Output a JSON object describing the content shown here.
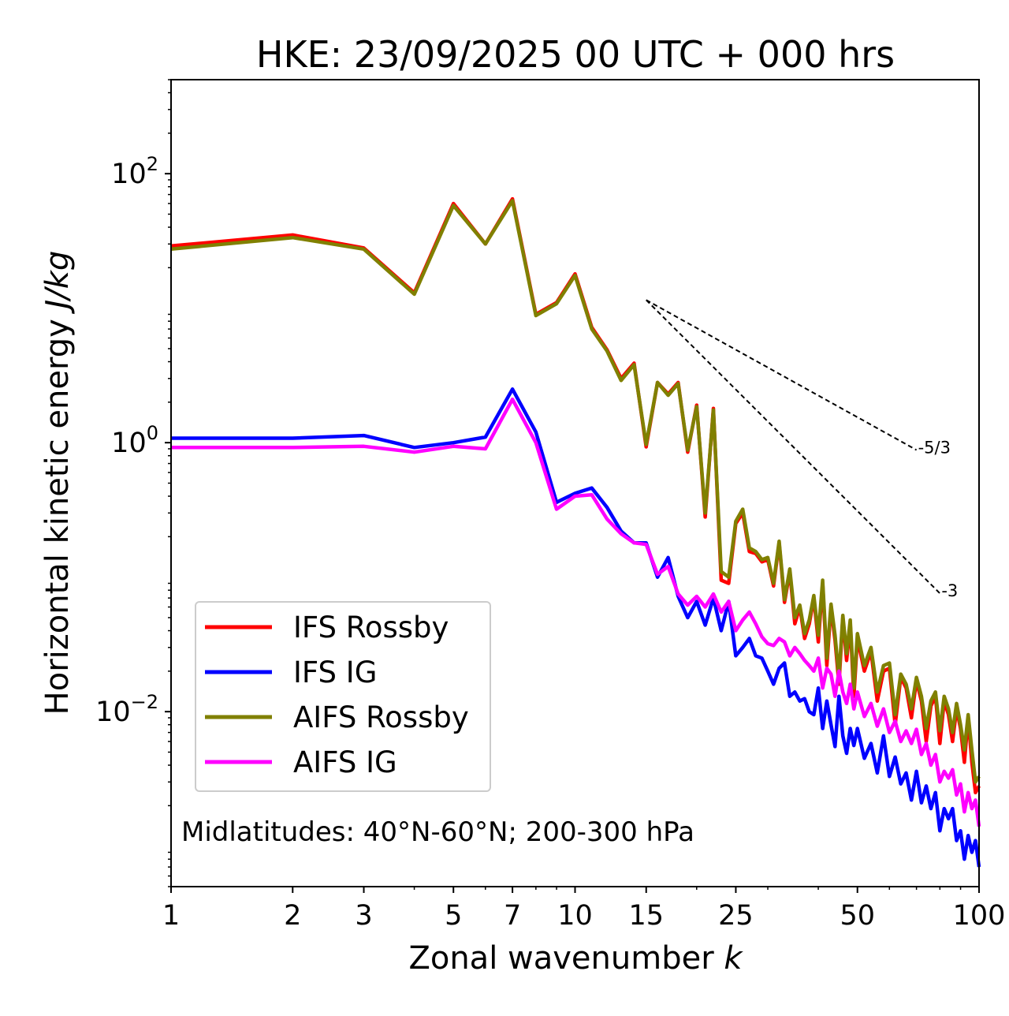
{
  "chart_data": {
    "type": "line",
    "title": "HKE: 23/09/2025 00 UTC + 000 hrs",
    "xlabel": "Zonal wavenumber",
    "xlabel_var": "k",
    "ylabel": "Horizontal kinetic energy",
    "ylabel_units": "J/kg",
    "xscale": "log",
    "yscale": "log",
    "xlim": [
      1,
      100
    ],
    "ylim": [
      0.0005,
      500
    ],
    "xticks": [
      1,
      2,
      3,
      5,
      7,
      10,
      15,
      25,
      50,
      100
    ],
    "xtick_labels": [
      "1",
      "2",
      "3",
      "5",
      "7",
      "10",
      "15",
      "25",
      "50",
      "100"
    ],
    "yticks": [
      0.01,
      1,
      100
    ],
    "ytick_labels": [
      {
        "base": "10",
        "exp": "−2"
      },
      {
        "base": "10",
        "exp": "0"
      },
      {
        "base": "10",
        "exp": "2"
      }
    ],
    "annotation": "Midlatitudes: 40°N-60°N; 200-300 hPa",
    "legend_position": "lower-left",
    "reference_lines": [
      {
        "label": "-5/3",
        "slope": -1.6667,
        "x0": 15,
        "y0": 11.5,
        "x1": 70,
        "color": "#000000"
      },
      {
        "label": "-3",
        "slope": -3,
        "x0": 15,
        "y0": 11.5,
        "x1": 80,
        "color": "#000000"
      }
    ],
    "series": [
      {
        "name": "IFS Rossby",
        "color": "#ff0000",
        "x": [
          1,
          2,
          3,
          4,
          5,
          6,
          7,
          8,
          9,
          10,
          11,
          12,
          13,
          14,
          15,
          16,
          17,
          18,
          19,
          20,
          21,
          22,
          23,
          24,
          25,
          26,
          27,
          28,
          29,
          30,
          31,
          32,
          33,
          34,
          35,
          36,
          37,
          38,
          39,
          40,
          41,
          42,
          43,
          44,
          45,
          46,
          47,
          48,
          49,
          50,
          52,
          54,
          56,
          58,
          60,
          62,
          64,
          66,
          68,
          70,
          72,
          74,
          76,
          78,
          80,
          82,
          84,
          86,
          88,
          90,
          92,
          94,
          96,
          98,
          100
        ],
        "values": [
          29,
          35,
          28,
          13,
          60,
          30,
          65,
          9,
          11,
          18,
          7.2,
          4.9,
          3.0,
          3.9,
          0.93,
          2.8,
          2.3,
          2.8,
          0.85,
          1.9,
          0.28,
          1.8,
          0.095,
          0.09,
          0.25,
          0.3,
          0.155,
          0.15,
          0.13,
          0.135,
          0.086,
          0.18,
          0.065,
          0.11,
          0.045,
          0.06,
          0.035,
          0.045,
          0.07,
          0.033,
          0.09,
          0.022,
          0.06,
          0.034,
          0.016,
          0.05,
          0.024,
          0.045,
          0.013,
          0.035,
          0.02,
          0.028,
          0.012,
          0.02,
          0.021,
          0.008,
          0.018,
          0.015,
          0.009,
          0.017,
          0.012,
          0.006,
          0.011,
          0.013,
          0.0058,
          0.012,
          0.0095,
          0.006,
          0.0105,
          0.0075,
          0.0042,
          0.009,
          0.0042,
          0.0025,
          0.0028
        ]
      },
      {
        "name": "IFS IG",
        "color": "#0000ff",
        "x": [
          1,
          2,
          3,
          4,
          5,
          6,
          7,
          8,
          9,
          10,
          11,
          12,
          13,
          14,
          15,
          16,
          17,
          18,
          19,
          20,
          21,
          22,
          23,
          24,
          25,
          26,
          27,
          28,
          29,
          30,
          31,
          32,
          33,
          34,
          35,
          36,
          37,
          38,
          39,
          40,
          41,
          42,
          43,
          44,
          45,
          46,
          47,
          48,
          49,
          50,
          52,
          54,
          56,
          58,
          60,
          62,
          64,
          66,
          68,
          70,
          72,
          74,
          76,
          78,
          80,
          82,
          84,
          86,
          88,
          90,
          92,
          94,
          96,
          98,
          100
        ],
        "values": [
          1.08,
          1.08,
          1.13,
          0.92,
          1.0,
          1.1,
          2.5,
          1.2,
          0.36,
          0.42,
          0.46,
          0.33,
          0.22,
          0.18,
          0.18,
          0.1,
          0.14,
          0.072,
          0.05,
          0.066,
          0.044,
          0.07,
          0.04,
          0.066,
          0.026,
          0.03,
          0.035,
          0.026,
          0.025,
          0.02,
          0.016,
          0.021,
          0.023,
          0.013,
          0.014,
          0.012,
          0.0125,
          0.01,
          0.0095,
          0.015,
          0.0075,
          0.012,
          0.008,
          0.0055,
          0.013,
          0.0066,
          0.0049,
          0.0075,
          0.0056,
          0.0075,
          0.0045,
          0.0058,
          0.0035,
          0.0066,
          0.0033,
          0.0046,
          0.0029,
          0.0035,
          0.0022,
          0.0036,
          0.0021,
          0.0028,
          0.0019,
          0.0025,
          0.0013,
          0.0019,
          0.0016,
          0.0019,
          0.0011,
          0.0013,
          0.0008,
          0.0012,
          0.0009,
          0.0011,
          0.0007
        ]
      },
      {
        "name": "AIFS Rossby",
        "color": "#808000",
        "x": [
          1,
          2,
          3,
          4,
          5,
          6,
          7,
          8,
          9,
          10,
          11,
          12,
          13,
          14,
          15,
          16,
          17,
          18,
          19,
          20,
          21,
          22,
          23,
          24,
          25,
          26,
          27,
          28,
          29,
          30,
          31,
          32,
          33,
          34,
          35,
          36,
          37,
          38,
          39,
          40,
          41,
          42,
          43,
          44,
          45,
          46,
          47,
          48,
          49,
          50,
          52,
          54,
          56,
          58,
          60,
          62,
          64,
          66,
          68,
          70,
          72,
          74,
          76,
          78,
          80,
          82,
          84,
          86,
          88,
          90,
          92,
          94,
          96,
          98,
          100
        ],
        "values": [
          27.5,
          33.5,
          27.5,
          12.7,
          58,
          30,
          63,
          8.8,
          10.8,
          17.5,
          7.0,
          4.8,
          2.9,
          3.8,
          0.97,
          2.8,
          2.25,
          2.75,
          0.88,
          1.85,
          0.3,
          1.75,
          0.11,
          0.1,
          0.26,
          0.32,
          0.165,
          0.155,
          0.135,
          0.14,
          0.09,
          0.185,
          0.068,
          0.115,
          0.05,
          0.062,
          0.038,
          0.048,
          0.073,
          0.037,
          0.095,
          0.025,
          0.063,
          0.037,
          0.018,
          0.052,
          0.027,
          0.048,
          0.015,
          0.038,
          0.022,
          0.03,
          0.014,
          0.022,
          0.023,
          0.0095,
          0.019,
          0.016,
          0.0105,
          0.018,
          0.013,
          0.0075,
          0.012,
          0.014,
          0.0072,
          0.013,
          0.0105,
          0.007,
          0.0115,
          0.008,
          0.0052,
          0.0095,
          0.0052,
          0.003,
          0.0033
        ]
      },
      {
        "name": "AIFS IG",
        "color": "#ff00ff",
        "x": [
          1,
          2,
          3,
          4,
          5,
          6,
          7,
          8,
          9,
          10,
          11,
          12,
          13,
          14,
          15,
          16,
          17,
          18,
          19,
          20,
          21,
          22,
          23,
          24,
          25,
          26,
          27,
          28,
          29,
          30,
          31,
          32,
          33,
          34,
          35,
          36,
          37,
          38,
          39,
          40,
          41,
          42,
          43,
          44,
          45,
          46,
          47,
          48,
          49,
          50,
          52,
          54,
          56,
          58,
          60,
          62,
          64,
          66,
          68,
          70,
          72,
          74,
          76,
          78,
          80,
          82,
          84,
          86,
          88,
          90,
          92,
          94,
          96,
          98,
          100
        ],
        "values": [
          0.92,
          0.92,
          0.94,
          0.85,
          0.94,
          0.9,
          2.1,
          1.0,
          0.32,
          0.4,
          0.41,
          0.27,
          0.21,
          0.18,
          0.175,
          0.105,
          0.12,
          0.075,
          0.062,
          0.072,
          0.06,
          0.075,
          0.055,
          0.066,
          0.04,
          0.048,
          0.055,
          0.045,
          0.036,
          0.032,
          0.031,
          0.035,
          0.033,
          0.026,
          0.03,
          0.027,
          0.024,
          0.022,
          0.02,
          0.025,
          0.015,
          0.021,
          0.019,
          0.013,
          0.02,
          0.014,
          0.0115,
          0.016,
          0.0105,
          0.014,
          0.0092,
          0.0115,
          0.0078,
          0.0105,
          0.007,
          0.0085,
          0.006,
          0.0072,
          0.0058,
          0.0074,
          0.0048,
          0.0058,
          0.004,
          0.0048,
          0.003,
          0.0036,
          0.0032,
          0.0037,
          0.0024,
          0.0029,
          0.0018,
          0.0025,
          0.0019,
          0.0022,
          0.0014
        ]
      }
    ]
  }
}
